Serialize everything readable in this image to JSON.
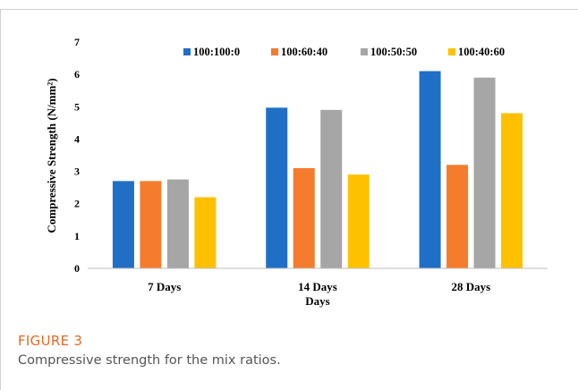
{
  "chart_data": {
    "type": "bar",
    "categories": [
      "7 Days",
      "14 Days",
      "28 Days"
    ],
    "series": [
      {
        "name": "100:100:0",
        "color": "#1f6fc6",
        "values": [
          2.7,
          4.97,
          6.1
        ]
      },
      {
        "name": "100:60:40",
        "color": "#f47c2c",
        "values": [
          2.7,
          3.1,
          3.2
        ]
      },
      {
        "name": "100:50:50",
        "color": "#a6a6a6",
        "values": [
          2.75,
          4.9,
          5.9
        ]
      },
      {
        "name": "100:40:60",
        "color": "#ffc000",
        "values": [
          2.2,
          2.9,
          4.8
        ]
      }
    ],
    "ylabel": "Compressive Strength (N/mm²)",
    "xlabel": "Days",
    "ylim": [
      0,
      7
    ],
    "yticks": [
      "0",
      "1",
      "2",
      "3",
      "4",
      "5",
      "6",
      "7"
    ],
    "grid": false,
    "legend_position": "top"
  },
  "caption": {
    "label": "FIGURE 3",
    "text": "Compressive strength for the mix ratios."
  }
}
